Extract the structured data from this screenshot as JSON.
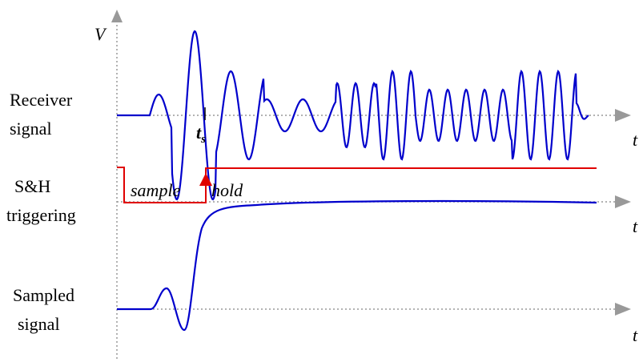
{
  "axis": {
    "vertical": "V",
    "time_receiver": "t",
    "time_trigger": "t",
    "time_sampled": "t"
  },
  "rows": [
    {
      "label": [
        "Receiver",
        "signal"
      ]
    },
    {
      "label": [
        "S&H",
        "triggering"
      ]
    },
    {
      "label": [
        "Sampled",
        "signal"
      ]
    }
  ],
  "marker": {
    "symbol": "t",
    "subscript": "s"
  },
  "trigger": {
    "sample": "sample",
    "hold": "hold"
  }
}
